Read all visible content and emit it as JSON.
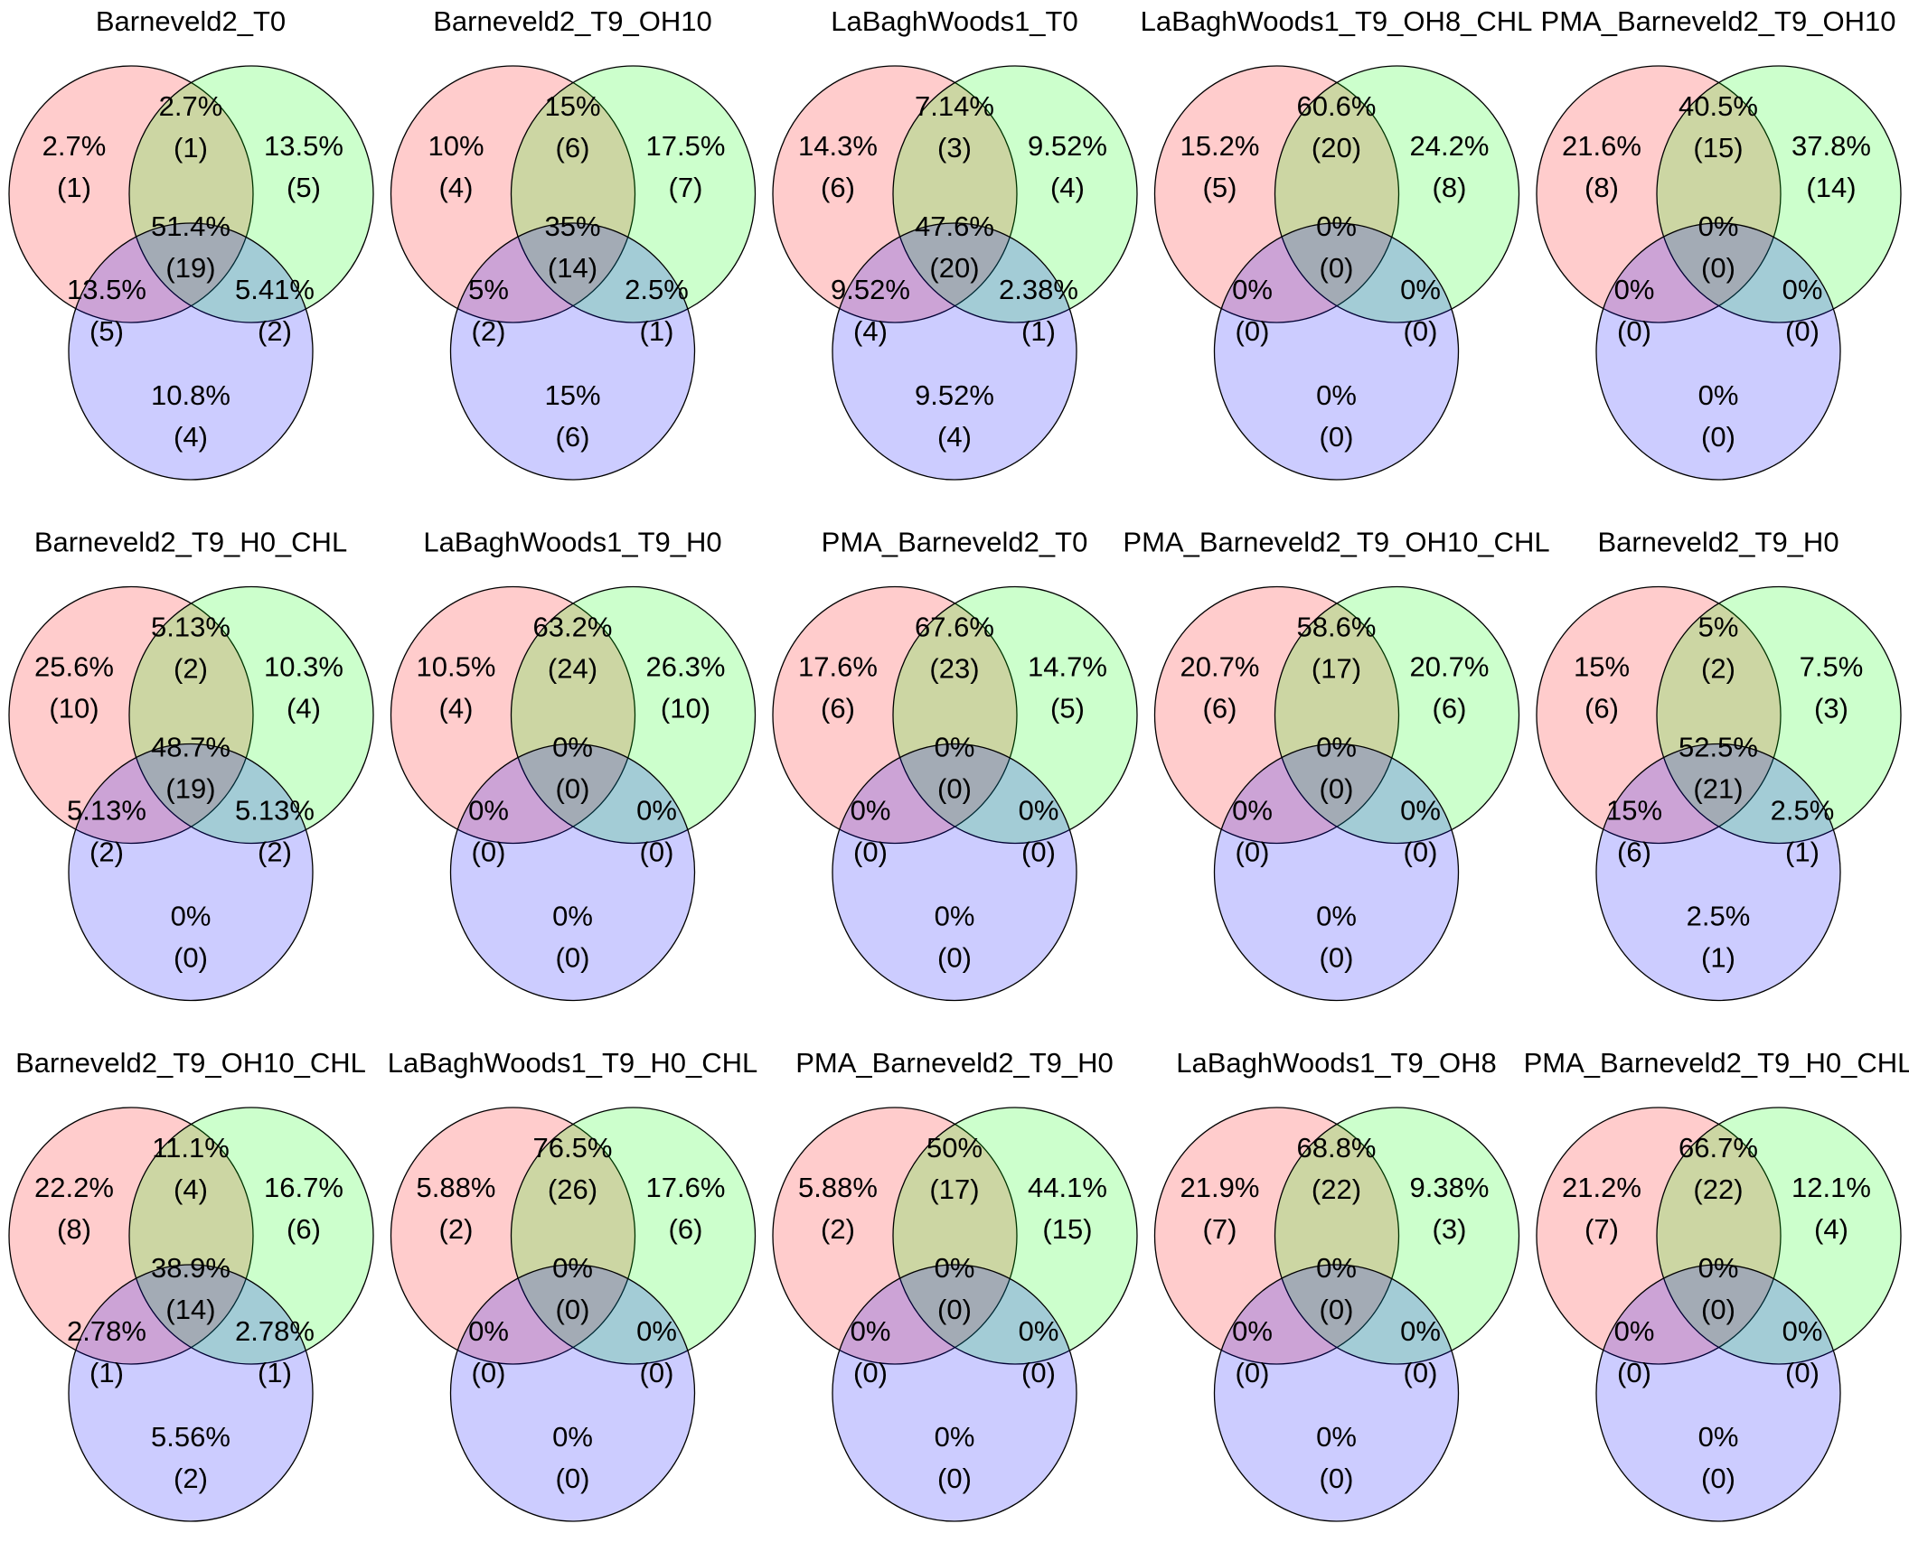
{
  "colors": {
    "set_a": "#ff0000",
    "set_b": "#00ff00",
    "set_c": "#0000ff",
    "fill_opacity": 0.2
  },
  "panels": [
    {
      "title": "Barneveld2_T0",
      "regions": {
        "a_only": [
          "2.7%",
          "(1)"
        ],
        "ab": [
          "2.7%",
          "(1)"
        ],
        "b_only": [
          "13.5%",
          "(5)"
        ],
        "abc": [
          "51.4%",
          "(19)"
        ],
        "ac": [
          "13.5%",
          "(5)"
        ],
        "bc": [
          "5.41%",
          "(2)"
        ],
        "c_only": [
          "10.8%",
          "(4)"
        ]
      }
    },
    {
      "title": "Barneveld2_T9_OH10",
      "regions": {
        "a_only": [
          "10%",
          "(4)"
        ],
        "ab": [
          "15%",
          "(6)"
        ],
        "b_only": [
          "17.5%",
          "(7)"
        ],
        "abc": [
          "35%",
          "(14)"
        ],
        "ac": [
          "5%",
          "(2)"
        ],
        "bc": [
          "2.5%",
          "(1)"
        ],
        "c_only": [
          "15%",
          "(6)"
        ]
      }
    },
    {
      "title": "LaBaghWoods1_T0",
      "regions": {
        "a_only": [
          "14.3%",
          "(6)"
        ],
        "ab": [
          "7.14%",
          "(3)"
        ],
        "b_only": [
          "9.52%",
          "(4)"
        ],
        "abc": [
          "47.6%",
          "(20)"
        ],
        "ac": [
          "9.52%",
          "(4)"
        ],
        "bc": [
          "2.38%",
          "(1)"
        ],
        "c_only": [
          "9.52%",
          "(4)"
        ]
      }
    },
    {
      "title": "LaBaghWoods1_T9_OH8_CHL",
      "regions": {
        "a_only": [
          "15.2%",
          "(5)"
        ],
        "ab": [
          "60.6%",
          "(20)"
        ],
        "b_only": [
          "24.2%",
          "(8)"
        ],
        "abc": [
          "0%",
          "(0)"
        ],
        "ac": [
          "0%",
          "(0)"
        ],
        "bc": [
          "0%",
          "(0)"
        ],
        "c_only": [
          "0%",
          "(0)"
        ]
      }
    },
    {
      "title": "PMA_Barneveld2_T9_OH10",
      "regions": {
        "a_only": [
          "21.6%",
          "(8)"
        ],
        "ab": [
          "40.5%",
          "(15)"
        ],
        "b_only": [
          "37.8%",
          "(14)"
        ],
        "abc": [
          "0%",
          "(0)"
        ],
        "ac": [
          "0%",
          "(0)"
        ],
        "bc": [
          "0%",
          "(0)"
        ],
        "c_only": [
          "0%",
          "(0)"
        ]
      }
    },
    {
      "title": "Barneveld2_T9_H0_CHL",
      "regions": {
        "a_only": [
          "25.6%",
          "(10)"
        ],
        "ab": [
          "5.13%",
          "(2)"
        ],
        "b_only": [
          "10.3%",
          "(4)"
        ],
        "abc": [
          "48.7%",
          "(19)"
        ],
        "ac": [
          "5.13%",
          "(2)"
        ],
        "bc": [
          "5.13%",
          "(2)"
        ],
        "c_only": [
          "0%",
          "(0)"
        ]
      }
    },
    {
      "title": "LaBaghWoods1_T9_H0",
      "regions": {
        "a_only": [
          "10.5%",
          "(4)"
        ],
        "ab": [
          "63.2%",
          "(24)"
        ],
        "b_only": [
          "26.3%",
          "(10)"
        ],
        "abc": [
          "0%",
          "(0)"
        ],
        "ac": [
          "0%",
          "(0)"
        ],
        "bc": [
          "0%",
          "(0)"
        ],
        "c_only": [
          "0%",
          "(0)"
        ]
      }
    },
    {
      "title": "PMA_Barneveld2_T0",
      "regions": {
        "a_only": [
          "17.6%",
          "(6)"
        ],
        "ab": [
          "67.6%",
          "(23)"
        ],
        "b_only": [
          "14.7%",
          "(5)"
        ],
        "abc": [
          "0%",
          "(0)"
        ],
        "ac": [
          "0%",
          "(0)"
        ],
        "bc": [
          "0%",
          "(0)"
        ],
        "c_only": [
          "0%",
          "(0)"
        ]
      }
    },
    {
      "title": "PMA_Barneveld2_T9_OH10_CHL",
      "regions": {
        "a_only": [
          "20.7%",
          "(6)"
        ],
        "ab": [
          "58.6%",
          "(17)"
        ],
        "b_only": [
          "20.7%",
          "(6)"
        ],
        "abc": [
          "0%",
          "(0)"
        ],
        "ac": [
          "0%",
          "(0)"
        ],
        "bc": [
          "0%",
          "(0)"
        ],
        "c_only": [
          "0%",
          "(0)"
        ]
      }
    },
    {
      "title": "Barneveld2_T9_H0",
      "regions": {
        "a_only": [
          "15%",
          "(6)"
        ],
        "ab": [
          "5%",
          "(2)"
        ],
        "b_only": [
          "7.5%",
          "(3)"
        ],
        "abc": [
          "52.5%",
          "(21)"
        ],
        "ac": [
          "15%",
          "(6)"
        ],
        "bc": [
          "2.5%",
          "(1)"
        ],
        "c_only": [
          "2.5%",
          "(1)"
        ]
      }
    },
    {
      "title": "Barneveld2_T9_OH10_CHL",
      "regions": {
        "a_only": [
          "22.2%",
          "(8)"
        ],
        "ab": [
          "11.1%",
          "(4)"
        ],
        "b_only": [
          "16.7%",
          "(6)"
        ],
        "abc": [
          "38.9%",
          "(14)"
        ],
        "ac": [
          "2.78%",
          "(1)"
        ],
        "bc": [
          "2.78%",
          "(1)"
        ],
        "c_only": [
          "5.56%",
          "(2)"
        ]
      }
    },
    {
      "title": "LaBaghWoods1_T9_H0_CHL",
      "regions": {
        "a_only": [
          "5.88%",
          "(2)"
        ],
        "ab": [
          "76.5%",
          "(26)"
        ],
        "b_only": [
          "17.6%",
          "(6)"
        ],
        "abc": [
          "0%",
          "(0)"
        ],
        "ac": [
          "0%",
          "(0)"
        ],
        "bc": [
          "0%",
          "(0)"
        ],
        "c_only": [
          "0%",
          "(0)"
        ]
      }
    },
    {
      "title": "PMA_Barneveld2_T9_H0",
      "regions": {
        "a_only": [
          "5.88%",
          "(2)"
        ],
        "ab": [
          "50%",
          "(17)"
        ],
        "b_only": [
          "44.1%",
          "(15)"
        ],
        "abc": [
          "0%",
          "(0)"
        ],
        "ac": [
          "0%",
          "(0)"
        ],
        "bc": [
          "0%",
          "(0)"
        ],
        "c_only": [
          "0%",
          "(0)"
        ]
      }
    },
    {
      "title": "LaBaghWoods1_T9_OH8",
      "regions": {
        "a_only": [
          "21.9%",
          "(7)"
        ],
        "ab": [
          "68.8%",
          "(22)"
        ],
        "b_only": [
          "9.38%",
          "(3)"
        ],
        "abc": [
          "0%",
          "(0)"
        ],
        "ac": [
          "0%",
          "(0)"
        ],
        "bc": [
          "0%",
          "(0)"
        ],
        "c_only": [
          "0%",
          "(0)"
        ]
      }
    },
    {
      "title": "PMA_Barneveld2_T9_H0_CHL",
      "regions": {
        "a_only": [
          "21.2%",
          "(7)"
        ],
        "ab": [
          "66.7%",
          "(22)"
        ],
        "b_only": [
          "12.1%",
          "(4)"
        ],
        "abc": [
          "0%",
          "(0)"
        ],
        "ac": [
          "0%",
          "(0)"
        ],
        "bc": [
          "0%",
          "(0)"
        ],
        "c_only": [
          "0%",
          "(0)"
        ]
      }
    }
  ]
}
